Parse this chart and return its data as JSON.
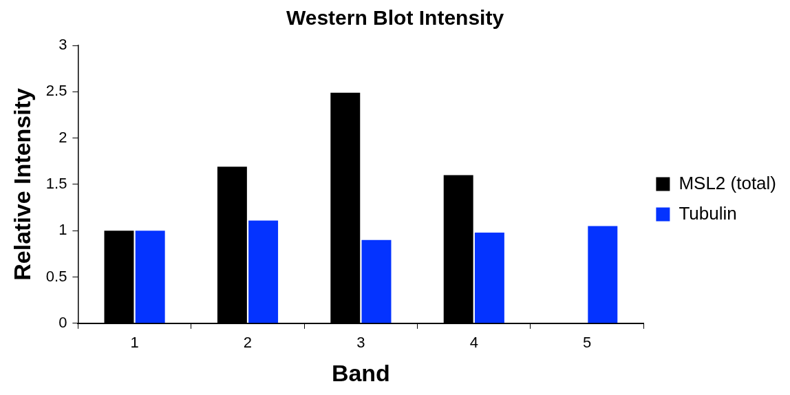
{
  "chart_data": {
    "type": "bar",
    "title": "Western Blot Intensity",
    "xlabel": "Band",
    "ylabel": "Relative Intensity",
    "categories": [
      "1",
      "2",
      "3",
      "4",
      "5"
    ],
    "series": [
      {
        "name": "MSL2 (total)",
        "color": "#000000",
        "values": [
          1.0,
          1.69,
          2.49,
          1.6,
          null
        ]
      },
      {
        "name": "Tubulin",
        "color": "#0433ff",
        "values": [
          1.0,
          1.11,
          0.9,
          0.98,
          1.05
        ]
      }
    ],
    "ylim": [
      0,
      3
    ],
    "yticks": [
      0,
      0.5,
      1,
      1.5,
      2,
      2.5,
      3
    ],
    "grid": false,
    "legend": "right"
  }
}
